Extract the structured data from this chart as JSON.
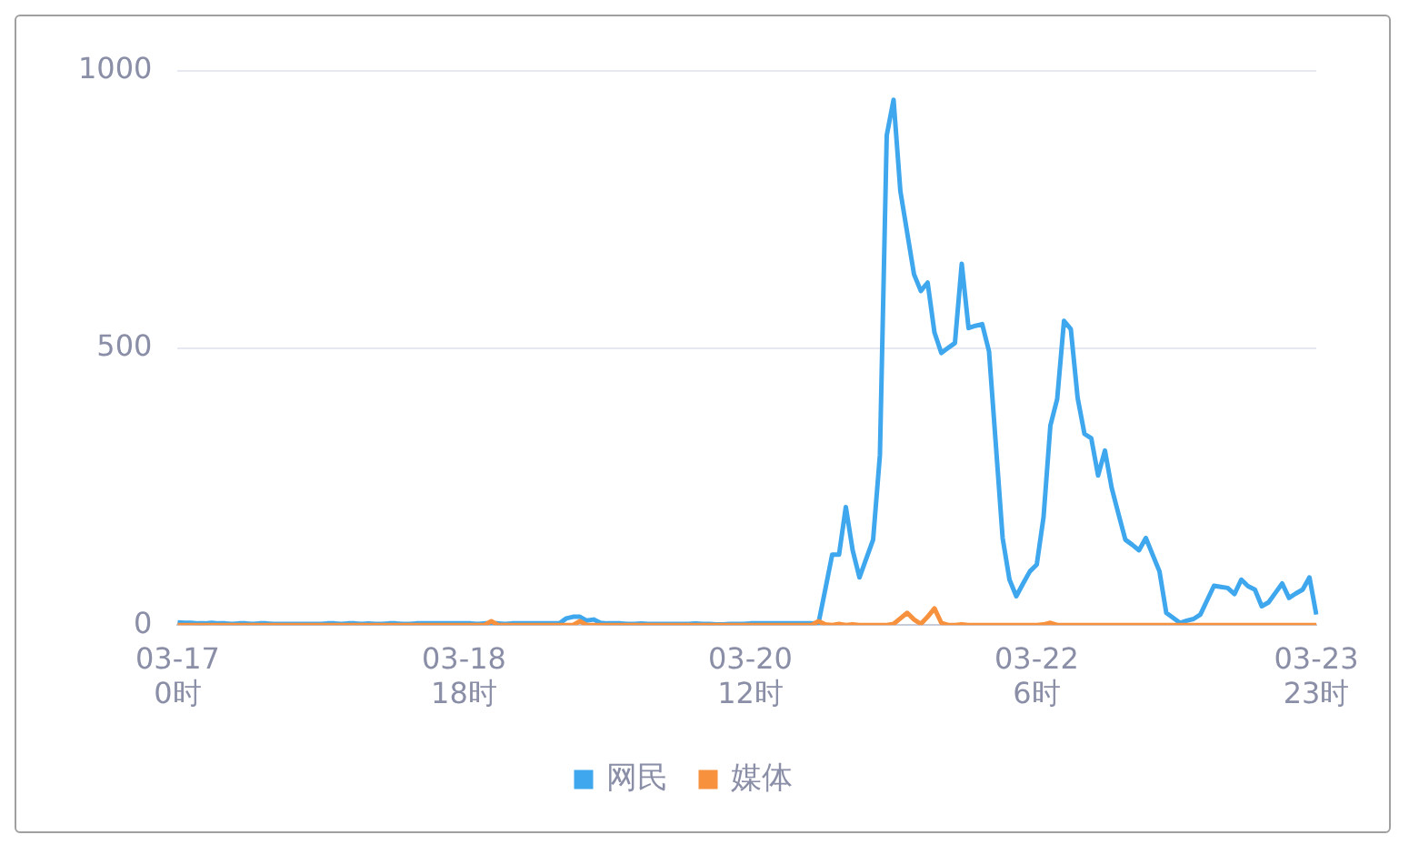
{
  "chart_data": {
    "type": "line",
    "categories": [
      "03-17 0时",
      null,
      null,
      null,
      null,
      null,
      null,
      null,
      null,
      null,
      null,
      null,
      null,
      null,
      null,
      null,
      null,
      null,
      null,
      null,
      null,
      null,
      null,
      null,
      null,
      null,
      null,
      null,
      null,
      null,
      null,
      null,
      null,
      null,
      null,
      null,
      null,
      null,
      null,
      null,
      null,
      null,
      "03-18 18时",
      null,
      null,
      null,
      null,
      null,
      null,
      null,
      null,
      null,
      null,
      null,
      null,
      null,
      null,
      null,
      null,
      null,
      null,
      null,
      null,
      null,
      null,
      null,
      null,
      null,
      null,
      null,
      null,
      null,
      null,
      null,
      null,
      null,
      null,
      null,
      null,
      null,
      null,
      null,
      null,
      null,
      "03-20 12时",
      null,
      null,
      null,
      null,
      null,
      null,
      null,
      null,
      null,
      null,
      null,
      null,
      null,
      null,
      null,
      null,
      null,
      null,
      null,
      null,
      null,
      null,
      null,
      null,
      null,
      null,
      null,
      null,
      null,
      null,
      null,
      null,
      null,
      null,
      null,
      null,
      null,
      null,
      null,
      null,
      null,
      "03-22 6时",
      null,
      null,
      null,
      null,
      null,
      null,
      null,
      null,
      null,
      null,
      null,
      null,
      null,
      null,
      null,
      null,
      null,
      null,
      null,
      null,
      null,
      null,
      null,
      null,
      null,
      null,
      null,
      null,
      null,
      null,
      null,
      null,
      null,
      null,
      null,
      null,
      null,
      null,
      null,
      null,
      "03-23 23时"
    ],
    "ylim": [
      0,
      1000
    ],
    "yticks": [
      0,
      500,
      1000
    ],
    "grid": "y",
    "legend": "bottom",
    "marker": "none",
    "line_style": "solid",
    "series": [
      {
        "name": "网民",
        "color": "#3fa7ee",
        "values": [
          5,
          4,
          4,
          3,
          3,
          4,
          3,
          3,
          2,
          3,
          3,
          2,
          3,
          3,
          2,
          2,
          2,
          2,
          2,
          2,
          2,
          2,
          3,
          3,
          2,
          3,
          3,
          2,
          3,
          2,
          2,
          3,
          3,
          2,
          2,
          3,
          3,
          3,
          3,
          3,
          3,
          3,
          3,
          3,
          2,
          3,
          3,
          3,
          2,
          3,
          3,
          3,
          3,
          3,
          3,
          3,
          3,
          12,
          15,
          15,
          8,
          10,
          4,
          3,
          3,
          3,
          2,
          2,
          3,
          2,
          2,
          2,
          2,
          2,
          2,
          2,
          3,
          2,
          2,
          1,
          1,
          2,
          2,
          2,
          3,
          3,
          3,
          3,
          3,
          3,
          3,
          3,
          3,
          3,
          4,
          65,
          127,
          127,
          213,
          135,
          86,
          120,
          154,
          307,
          884,
          948,
          783,
          708,
          633,
          603,
          618,
          528,
          491,
          500,
          509,
          652,
          536,
          540,
          543,
          494,
          326,
          157,
          82,
          52,
          75,
          97,
          109,
          195,
          360,
          408,
          549,
          534,
          410,
          345,
          337,
          270,
          315,
          247,
          200,
          154,
          145,
          135,
          157,
          127,
          97,
          22,
          13,
          4,
          8,
          11,
          19,
          45,
          71,
          69,
          67,
          56,
          82,
          70,
          64,
          34,
          41,
          58,
          75,
          49,
          57,
          64,
          86,
          19
        ]
      },
      {
        "name": "媒体",
        "color": "#f7913d",
        "values": [
          0,
          0,
          0,
          0,
          0,
          0,
          0,
          0,
          0,
          0,
          0,
          0,
          0,
          0,
          0,
          0,
          0,
          0,
          0,
          0,
          0,
          0,
          0,
          0,
          0,
          0,
          0,
          0,
          0,
          0,
          0,
          0,
          0,
          0,
          0,
          0,
          0,
          0,
          0,
          0,
          0,
          0,
          0,
          0,
          0,
          0,
          7,
          0,
          0,
          0,
          0,
          0,
          0,
          0,
          0,
          0,
          0,
          0,
          0,
          7,
          0,
          0,
          0,
          0,
          0,
          0,
          0,
          0,
          0,
          0,
          0,
          0,
          0,
          0,
          0,
          0,
          0,
          0,
          0,
          0,
          0,
          0,
          0,
          0,
          0,
          0,
          0,
          0,
          0,
          0,
          0,
          0,
          0,
          0,
          7,
          1,
          0,
          2,
          0,
          1,
          0,
          0,
          0,
          0,
          0,
          2,
          12,
          22,
          10,
          2,
          15,
          30,
          4,
          0,
          0,
          1,
          0,
          0,
          0,
          0,
          0,
          0,
          0,
          0,
          0,
          0,
          0,
          1,
          4,
          0,
          0,
          0,
          0,
          0,
          0,
          0,
          0,
          0,
          0,
          0,
          0,
          0,
          0,
          0,
          0,
          0,
          0,
          0,
          0,
          0,
          0,
          0,
          0,
          0,
          0,
          0,
          0,
          0,
          0,
          0,
          0,
          0,
          0,
          0,
          0,
          0,
          0,
          0
        ]
      }
    ]
  }
}
